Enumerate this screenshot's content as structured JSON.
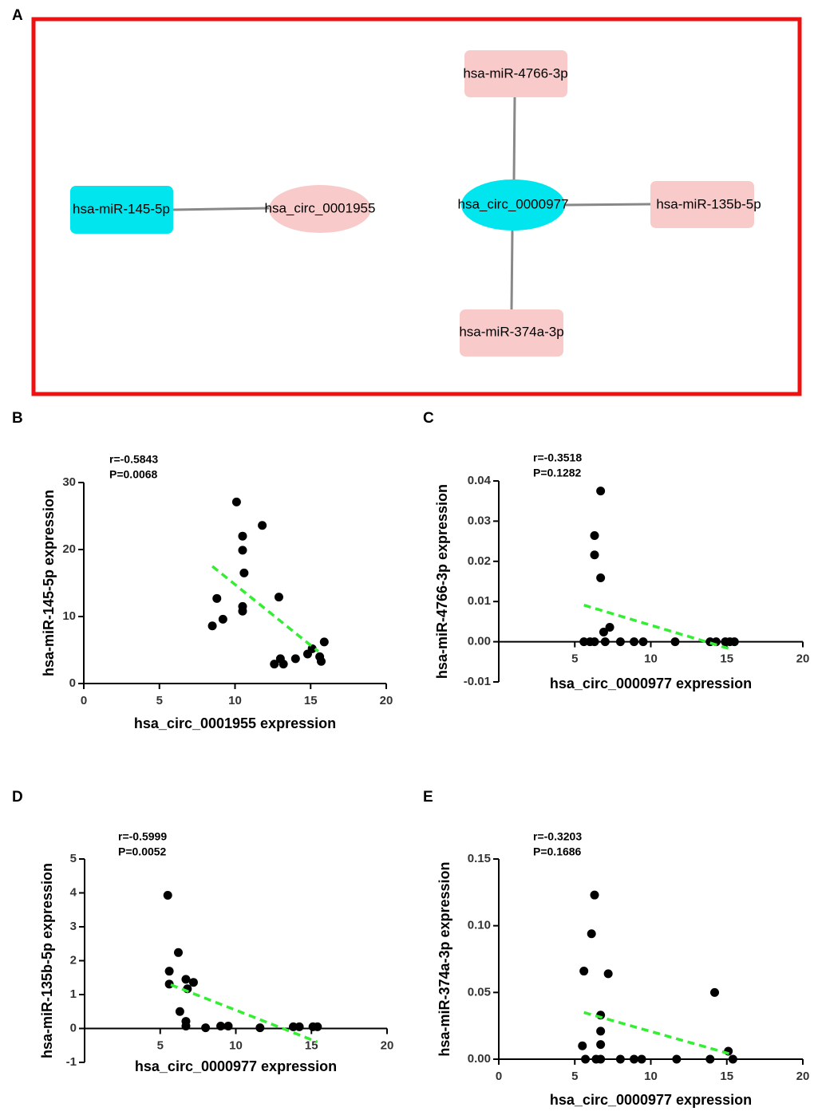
{
  "diagram": {
    "label": "A",
    "nodes": [
      "hsa-miR-145-5p",
      "hsa_circ_0001955",
      "hsa_circ_0000977",
      "hsa-miR-4766-3p",
      "hsa-miR-135b-5p",
      "hsa-miR-374a-3p"
    ]
  },
  "chart_data": [
    {
      "type": "scatter",
      "label": "B",
      "annotations": [
        "r=-0.5843",
        "P=0.0068"
      ],
      "x_label": "hsa_circ_0001955 expression",
      "y_label": "hsa-miR-145-5p expression",
      "color": "#000000",
      "x": [
        8.5,
        8.8,
        9.2,
        10.1,
        10.5,
        10.5,
        10.5,
        10.5,
        10.6,
        11.8,
        12.9,
        12.6,
        13.0,
        13.2,
        14.0,
        14.8,
        15.1,
        15.6,
        15.7,
        15.9
      ],
      "y": [
        8.6,
        12.7,
        9.6,
        27.1,
        22.0,
        19.9,
        11.5,
        10.8,
        16.5,
        23.6,
        12.9,
        2.9,
        3.7,
        2.9,
        3.7,
        4.4,
        5.2,
        4.0,
        3.3,
        6.2
      ],
      "trendline": {
        "x": [
          8.5,
          15.5
        ],
        "y": [
          17.5,
          4.8
        ],
        "color": "#33ee33"
      },
      "xlim": [
        0,
        20
      ],
      "ylim": [
        0,
        30
      ],
      "xticks": [
        0,
        5,
        10,
        15,
        20
      ],
      "yticks": [
        0,
        10,
        20,
        30
      ]
    },
    {
      "type": "scatter",
      "label": "C",
      "annotations": [
        "r=-0.3518",
        "P=0.1282"
      ],
      "x_label": "hsa_circ_0000977 expression",
      "y_label": "hsa-miR-4766-3p expression",
      "color": "#000000",
      "x": [
        5.6,
        6.0,
        6.3,
        6.3,
        6.3,
        6.7,
        6.7,
        6.9,
        7.0,
        7.3,
        8.0,
        8.9,
        9.5,
        11.6,
        13.9,
        14.3,
        14.9,
        15.2,
        15.5
      ],
      "y": [
        0,
        0,
        0,
        0.0264,
        0.0216,
        0.0375,
        0.0159,
        0.0024,
        0,
        0.0036,
        0,
        0,
        0,
        0,
        0,
        0,
        0,
        0,
        0
      ],
      "trendline": {
        "x": [
          5.6,
          15.4
        ],
        "y": [
          0.0091,
          -0.002
        ],
        "color": "#33ee33"
      },
      "xlim": [
        0,
        20
      ],
      "ylim": [
        -0.01,
        0.04
      ],
      "xticks": [
        5,
        10,
        15,
        20
      ],
      "yticks": [
        -0.01,
        {
          "value": 0,
          "label": "0.00"
        },
        0.01,
        0.02,
        0.03,
        0.04
      ]
    },
    {
      "type": "scatter",
      "label": "D",
      "annotations": [
        "r=-0.5999",
        "P=0.0052"
      ],
      "x_label": "hsa_circ_0000977 expression",
      "y_label": "hsa-miR-135b-5p expression",
      "color": "#000000",
      "x": [
        5.5,
        5.6,
        5.6,
        6.2,
        6.3,
        6.7,
        6.8,
        6.7,
        6.7,
        7.2,
        8.0,
        9.0,
        9.5,
        11.6,
        13.8,
        14.2,
        15.1,
        15.4
      ],
      "y": [
        3.93,
        1.69,
        1.31,
        2.24,
        0.5,
        1.45,
        1.17,
        0.21,
        0.07,
        1.36,
        0.02,
        0.07,
        0.07,
        0.02,
        0.05,
        0.05,
        0.05,
        0.05
      ],
      "trendline": {
        "x": [
          5.7,
          15.4
        ],
        "y": [
          1.29,
          -0.4
        ],
        "color": "#33ee33"
      },
      "xlim": [
        0,
        20
      ],
      "ylim": [
        -1,
        5
      ],
      "xticks": [
        5,
        10,
        15,
        20
      ],
      "yticks": [
        -1,
        0,
        1,
        2,
        3,
        4,
        5
      ]
    },
    {
      "type": "scatter",
      "label": "E",
      "annotations": [
        "r=-0.3203",
        "P=0.1686"
      ],
      "x_label": "hsa_circ_0000977 expression",
      "y_label": "hsa-miR-374a-3p expression",
      "color": "#000000",
      "x": [
        5.6,
        5.5,
        5.7,
        6.1,
        6.3,
        6.4,
        6.7,
        6.7,
        6.7,
        6.7,
        7.2,
        8.0,
        8.9,
        9.4,
        11.7,
        13.9,
        14.2,
        15.1,
        15.4
      ],
      "y": [
        0.066,
        0.01,
        0,
        0.094,
        0.123,
        0,
        0.033,
        0.021,
        0.011,
        0,
        0.064,
        0,
        0,
        0,
        0,
        0,
        0.05,
        0.006,
        0
      ],
      "trendline": {
        "x": [
          5.6,
          15.2
        ],
        "y": [
          0.035,
          0.004
        ],
        "color": "#33ee33"
      },
      "xlim": [
        0,
        20
      ],
      "ylim": [
        0,
        0.15
      ],
      "xticks": [
        0,
        5,
        10,
        15,
        20
      ],
      "yticks": [
        {
          "value": 0,
          "label": "0.00"
        },
        0.05,
        {
          "value": 0.1,
          "label": "0.10"
        },
        0.15
      ]
    }
  ]
}
